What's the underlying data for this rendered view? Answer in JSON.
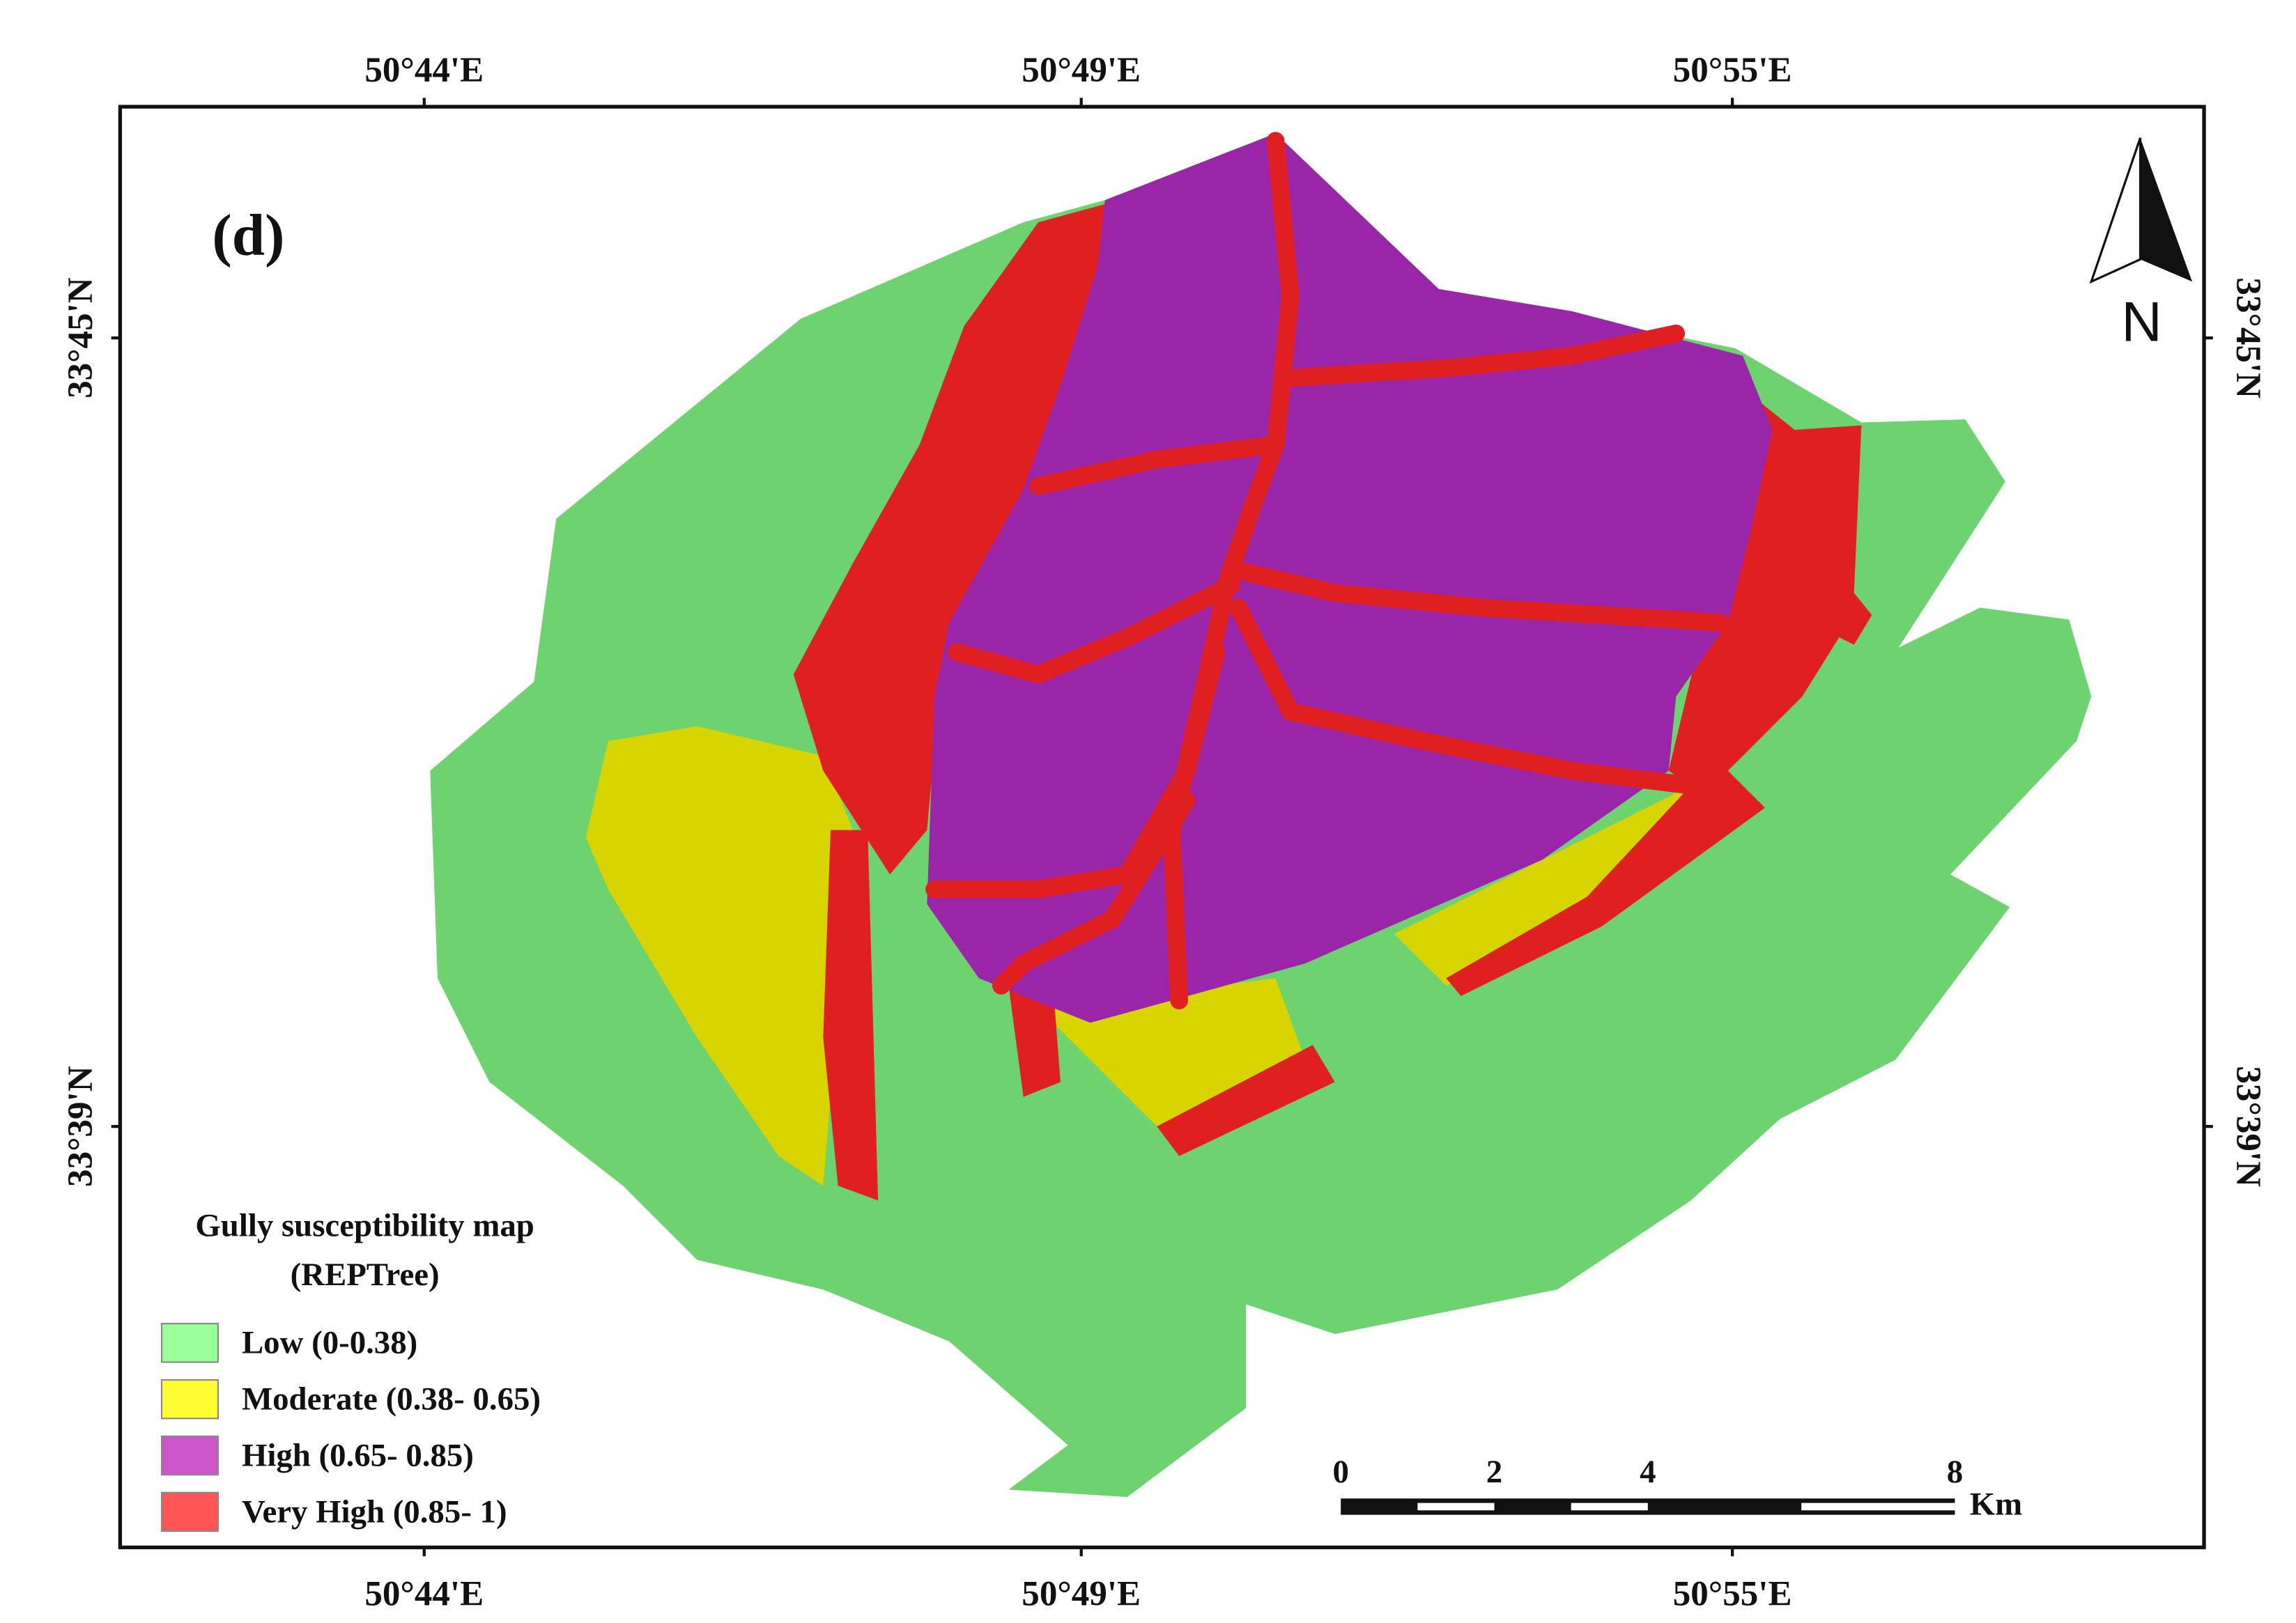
{
  "map": {
    "panel_label": "(d)",
    "north_label": "N",
    "top_axis": [
      "50°44'E",
      "50°49'E",
      "50°55'E"
    ],
    "bottom_axis": [
      "50°44'E",
      "50°49'E",
      "50°55'E"
    ],
    "left_axis": [
      "33°45'N",
      "33°39'N"
    ],
    "right_axis": [
      "33°45'N",
      "33°39'N"
    ],
    "legend": {
      "title": [
        "Gully susceptibility map",
        "(REPTree)"
      ],
      "items": [
        {
          "label": "Low (0-0.38)",
          "color": "#99ff99"
        },
        {
          "label": "Moderate (0.38- 0.65)",
          "color": "#ffff33"
        },
        {
          "label": "High (0.65- 0.85)",
          "color": "#cc55cc"
        },
        {
          "label": "Very High (0.85- 1)",
          "color": "#ff5555"
        }
      ]
    },
    "scale_bar": {
      "ticks": [
        0,
        2,
        4,
        8
      ],
      "unit": "Km"
    }
  }
}
